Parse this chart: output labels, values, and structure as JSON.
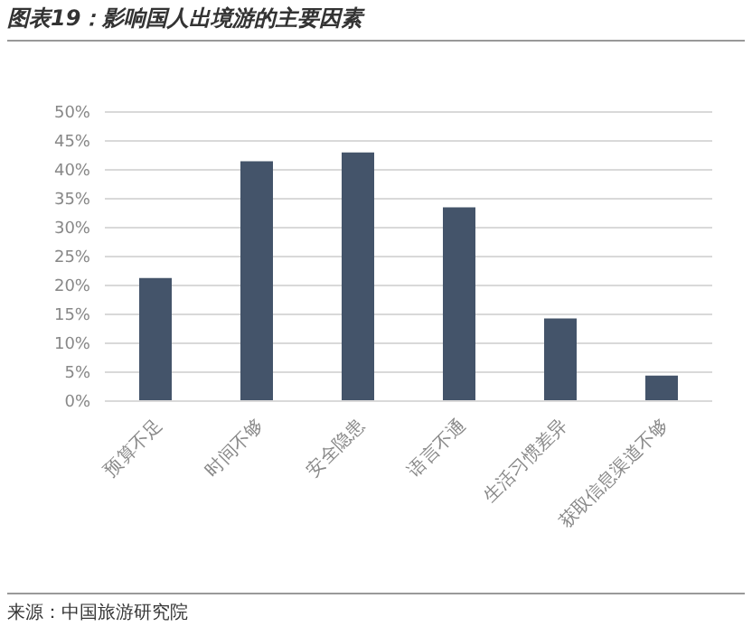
{
  "chart_data": {
    "type": "bar",
    "title": "图表19：影响国人出境游的主要因素",
    "categories": [
      "预算不足",
      "时间不够",
      "安全隐患",
      "语言不通",
      "生活习惯差异",
      "获取信息渠道不够"
    ],
    "values": [
      21.3,
      41.5,
      43,
      33.5,
      14.3,
      4.4
    ],
    "color": "#44546a",
    "ylim": [
      0,
      50
    ],
    "yticks": [
      {
        "value": 0,
        "label": "0%"
      },
      {
        "value": 5,
        "label": "5%"
      },
      {
        "value": 10,
        "label": "10%"
      },
      {
        "value": 15,
        "label": "15%"
      },
      {
        "value": 20,
        "label": "20%"
      },
      {
        "value": 25,
        "label": "25%"
      },
      {
        "value": 30,
        "label": "30%"
      },
      {
        "value": 35,
        "label": "35%"
      },
      {
        "value": 40,
        "label": "40%"
      },
      {
        "value": 45,
        "label": "45%"
      },
      {
        "value": 50,
        "label": "50%"
      }
    ],
    "grid": "y",
    "annotations": [
      "来源：中国旅游研究院"
    ]
  }
}
